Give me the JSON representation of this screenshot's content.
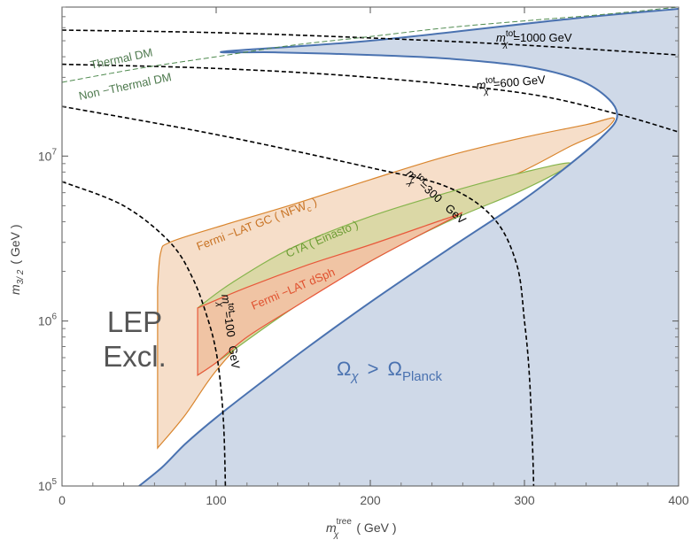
{
  "chart_data": {
    "type": "area",
    "xlabel": {
      "main": "m",
      "sup": "tree",
      "sub": "χ",
      "unit": "( GeV )"
    },
    "ylabel": {
      "main": "m",
      "sub": "3/ 2",
      "unit": "( GeV )"
    },
    "xlim": [
      0,
      400
    ],
    "ylim": [
      100000,
      80000000
    ],
    "yscale": "log",
    "grid": false,
    "xticks": [
      {
        "v": 0,
        "label": "0"
      },
      {
        "v": 100,
        "label": "100"
      },
      {
        "v": 200,
        "label": "200"
      },
      {
        "v": 300,
        "label": "300"
      },
      {
        "v": 400,
        "label": "400"
      }
    ],
    "yticks": [
      {
        "v": 100000,
        "base": "10",
        "exp": "5"
      },
      {
        "v": 1000000,
        "base": "10",
        "exp": "6"
      },
      {
        "v": 10000000,
        "base": "10",
        "exp": "7"
      }
    ],
    "colors": {
      "excluded_fill": "#cfd9e8",
      "boundary": "#4a72b0",
      "fermi_gc_fill": "#f6dec9",
      "fermi_gc_line": "#d9852d",
      "cta_fill": "#dbd8a6",
      "cta_line": "#86b44c",
      "dsph_fill": "#f0c4a4",
      "dsph_line": "#e8583a",
      "contour": "#000000",
      "thermal_line": "#4e8a4e",
      "excluded_label": "#4a72b0",
      "lep_label": "#555555"
    },
    "regions": {
      "omega_excluded_boundary": [
        [
          50,
          100000
        ],
        [
          65,
          130000
        ],
        [
          80,
          180000
        ],
        [
          100,
          260000
        ],
        [
          130,
          430000
        ],
        [
          160,
          700000
        ],
        [
          200,
          1300000
        ],
        [
          250,
          2700000
        ],
        [
          300,
          5500000
        ],
        [
          330,
          9000000
        ],
        [
          350,
          13000000
        ],
        [
          360,
          17000000
        ],
        [
          355,
          22000000
        ],
        [
          335,
          29000000
        ],
        [
          300,
          35000000
        ],
        [
          250,
          39000000
        ],
        [
          200,
          41000000
        ],
        [
          140,
          42500000
        ],
        [
          105,
          43000000
        ],
        [
          200,
          50000000
        ],
        [
          330,
          68000000
        ],
        [
          400,
          78000000
        ]
      ],
      "fermi_lat_gc": [
        [
          62,
          1600000
        ],
        [
          64,
          2600000
        ],
        [
          70,
          3000000
        ],
        [
          100,
          3700000
        ],
        [
          150,
          5100000
        ],
        [
          200,
          7200000
        ],
        [
          250,
          10000000
        ],
        [
          300,
          13000000
        ],
        [
          340,
          15500000
        ],
        [
          358,
          17000000
        ],
        [
          350,
          14000000
        ],
        [
          330,
          11500000
        ],
        [
          300,
          8200000
        ],
        [
          250,
          5000000
        ],
        [
          200,
          2900000
        ],
        [
          160,
          1700000
        ],
        [
          130,
          1000000
        ],
        [
          100,
          500000
        ],
        [
          80,
          270000
        ],
        [
          62,
          170000
        ]
      ],
      "cta_einasto": [
        [
          88,
          1200000
        ],
        [
          110,
          1700000
        ],
        [
          150,
          2800000
        ],
        [
          200,
          4300000
        ],
        [
          250,
          6000000
        ],
        [
          300,
          8000000
        ],
        [
          330,
          9000000
        ],
        [
          300,
          6300000
        ],
        [
          250,
          4000000
        ],
        [
          200,
          2300000
        ],
        [
          150,
          1200000
        ],
        [
          100,
          560000
        ],
        [
          88,
          470000
        ]
      ],
      "fermi_lat_dsph": [
        [
          88,
          1200000
        ],
        [
          120,
          1600000
        ],
        [
          160,
          2200000
        ],
        [
          200,
          2900000
        ],
        [
          250,
          4200000
        ],
        [
          255,
          4300000
        ],
        [
          200,
          2300000
        ],
        [
          150,
          1200000
        ],
        [
          120,
          800000
        ],
        [
          100,
          560000
        ],
        [
          88,
          470000
        ]
      ]
    },
    "series": [
      {
        "name": "m_χ^tot=100 GeV",
        "points": [
          [
            0,
            7000000
          ],
          [
            40,
            5000000
          ],
          [
            70,
            3000000
          ],
          [
            85,
            1800000
          ],
          [
            95,
            1000000
          ],
          [
            100,
            650000
          ],
          [
            103,
            400000
          ],
          [
            105,
            220000
          ],
          [
            106,
            100000
          ]
        ]
      },
      {
        "name": "m_χ^tot=300 GeV",
        "points": [
          [
            0,
            20000000
          ],
          [
            100,
            13500000
          ],
          [
            200,
            8500000
          ],
          [
            250,
            6500000
          ],
          [
            280,
            4200000
          ],
          [
            295,
            2200000
          ],
          [
            300,
            1000000
          ],
          [
            303,
            500000
          ],
          [
            305,
            200000
          ],
          [
            306,
            100000
          ]
        ]
      },
      {
        "name": "m_χ^tot=600 GeV",
        "points": [
          [
            0,
            36000000
          ],
          [
            100,
            34000000
          ],
          [
            200,
            30000000
          ],
          [
            300,
            24000000
          ],
          [
            360,
            18000000
          ],
          [
            400,
            14000000
          ]
        ]
      },
      {
        "name": "m_χ^tot=1000 GeV",
        "points": [
          [
            0,
            58000000
          ],
          [
            100,
            56000000
          ],
          [
            200,
            52000000
          ],
          [
            300,
            47000000
          ],
          [
            400,
            41000000
          ]
        ]
      },
      {
        "name": "Thermal DM",
        "points": [
          [
            0,
            28000000
          ],
          [
            50,
            34000000
          ],
          [
            100,
            40000000
          ],
          [
            150,
            47000000
          ],
          [
            200,
            53000000
          ],
          [
            250,
            60000000
          ],
          [
            300,
            66000000
          ],
          [
            350,
            72000000
          ],
          [
            400,
            80000000
          ]
        ]
      }
    ],
    "annotations": {
      "thermal": "Thermal   DM",
      "nonthermal": "Non −Thermal   DM",
      "c1000_m": "m",
      "c1000_sub": "χ",
      "c1000_sup": "tot",
      "c1000_val": "=1000  GeV",
      "c600_m": "m",
      "c600_sub": "χ",
      "c600_sup": "tot",
      "c600_val": "=600  GeV",
      "c300_m": "m",
      "c300_sub": "χ",
      "c300_sup": "tot",
      "c300_val": "=300",
      "c300_gev": "GeV",
      "c100_m": "m",
      "c100_sub": "χ",
      "c100_sup": "tot",
      "c100_val": "=100",
      "c100_gev": "GeV",
      "fermi_gc": "Fermi −LAT   GC  ( NFW",
      "fermi_gc_sub": "c",
      "fermi_gc_end": ")",
      "cta": "CTA   ( Einasto )",
      "dsph": "Fermi −LAT   dSph",
      "lep1": "LEP",
      "lep2": "Excl.",
      "omega_a": "Ω",
      "omega_a_sub": "χ",
      "omega_gt": ">",
      "omega_b": "Ω",
      "omega_b_sub": "Planck"
    }
  }
}
